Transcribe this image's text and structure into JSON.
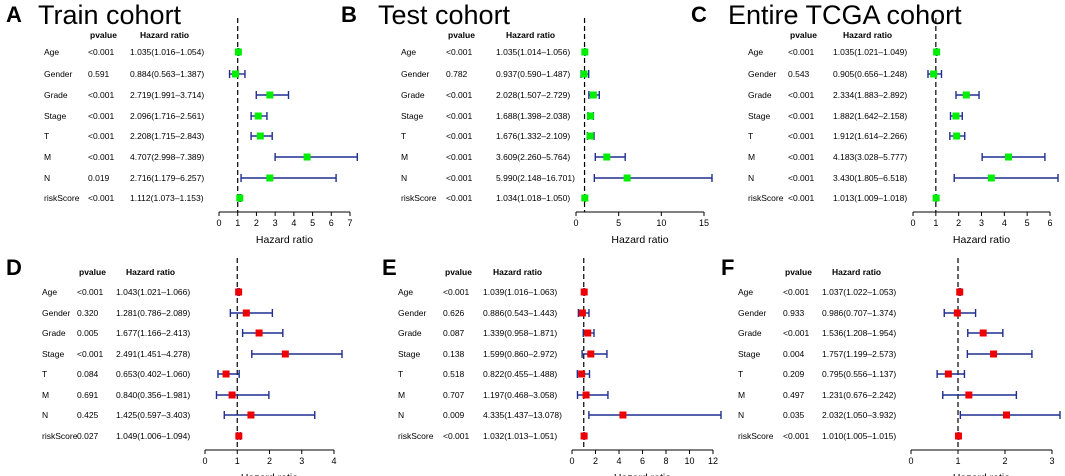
{
  "chart_data": [
    {
      "type": "forest",
      "panel": "A",
      "title": "Train cohort",
      "headers": {
        "pvalue": "pvalue",
        "hr": "Hazard ratio"
      },
      "xlabel": "Hazard ratio",
      "xlim": [
        0,
        7
      ],
      "xticks": [
        0,
        1,
        2,
        3,
        4,
        5,
        6,
        7
      ],
      "reference": 1,
      "marker_color": "#00ee00",
      "whisker_color": "#1f2f8f",
      "rows": [
        {
          "variable": "Age",
          "pvalue": "<0.001",
          "hr_text": "1.035(1.016–1.054)",
          "hr": 1.035,
          "lower": 1.016,
          "upper": 1.054
        },
        {
          "variable": "Gender",
          "pvalue": "0.591",
          "hr_text": "0.884(0.563–1.387)",
          "hr": 0.884,
          "lower": 0.563,
          "upper": 1.387
        },
        {
          "variable": "Grade",
          "pvalue": "<0.001",
          "hr_text": "2.719(1.991–3.714)",
          "hr": 2.719,
          "lower": 1.991,
          "upper": 3.714
        },
        {
          "variable": "Stage",
          "pvalue": "<0.001",
          "hr_text": "2.096(1.716–2.561)",
          "hr": 2.096,
          "lower": 1.716,
          "upper": 2.561
        },
        {
          "variable": "T",
          "pvalue": "<0.001",
          "hr_text": "2.208(1.715–2.843)",
          "hr": 2.208,
          "lower": 1.715,
          "upper": 2.843
        },
        {
          "variable": "M",
          "pvalue": "<0.001",
          "hr_text": "4.707(2.998–7.389)",
          "hr": 4.707,
          "lower": 2.998,
          "upper": 7.389
        },
        {
          "variable": "N",
          "pvalue": "0.019",
          "hr_text": "2.716(1.179–6.257)",
          "hr": 2.716,
          "lower": 1.179,
          "upper": 6.257
        },
        {
          "variable": "riskScore",
          "pvalue": "<0.001",
          "hr_text": "1.112(1.073–1.153)",
          "hr": 1.112,
          "lower": 1.073,
          "upper": 1.153
        }
      ]
    },
    {
      "type": "forest",
      "panel": "B",
      "title": "Test cohort",
      "headers": {
        "pvalue": "pvalue",
        "hr": "Hazard ratio"
      },
      "xlabel": "Hazard ratio",
      "xlim": [
        0,
        15
      ],
      "xticks": [
        0,
        5,
        10,
        15
      ],
      "reference": 1,
      "marker_color": "#00ee00",
      "whisker_color": "#1f2f8f",
      "rows": [
        {
          "variable": "Age",
          "pvalue": "<0.001",
          "hr_text": "1.035(1.014–1.056)",
          "hr": 1.035,
          "lower": 1.014,
          "upper": 1.056
        },
        {
          "variable": "Gender",
          "pvalue": "0.782",
          "hr_text": "0.937(0.590–1.487)",
          "hr": 0.937,
          "lower": 0.59,
          "upper": 1.487
        },
        {
          "variable": "Grade",
          "pvalue": "<0.001",
          "hr_text": "2.028(1.507–2.729)",
          "hr": 2.028,
          "lower": 1.507,
          "upper": 2.729
        },
        {
          "variable": "Stage",
          "pvalue": "<0.001",
          "hr_text": "1.688(1.398–2.038)",
          "hr": 1.688,
          "lower": 1.398,
          "upper": 2.038
        },
        {
          "variable": "T",
          "pvalue": "<0.001",
          "hr_text": "1.676(1.332–2.109)",
          "hr": 1.676,
          "lower": 1.332,
          "upper": 2.109
        },
        {
          "variable": "M",
          "pvalue": "<0.001",
          "hr_text": "3.609(2.260–5.764)",
          "hr": 3.609,
          "lower": 2.26,
          "upper": 5.764
        },
        {
          "variable": "N",
          "pvalue": "<0.001",
          "hr_text": "5.990(2.148–16.701)",
          "hr": 5.99,
          "lower": 2.148,
          "upper": 16.701
        },
        {
          "variable": "riskScore",
          "pvalue": "<0.001",
          "hr_text": "1.034(1.018–1.050)",
          "hr": 1.034,
          "lower": 1.018,
          "upper": 1.05
        }
      ]
    },
    {
      "type": "forest",
      "panel": "C",
      "title": "Entire TCGA cohort",
      "headers": {
        "pvalue": "pvalue",
        "hr": "Hazard ratio"
      },
      "xlabel": "Hazard ratio",
      "xlim": [
        0,
        6
      ],
      "xticks": [
        0,
        1,
        2,
        3,
        4,
        5,
        6
      ],
      "reference": 1,
      "marker_color": "#00ee00",
      "whisker_color": "#1f2f8f",
      "rows": [
        {
          "variable": "Age",
          "pvalue": "<0.001",
          "hr_text": "1.035(1.021–1.049)",
          "hr": 1.035,
          "lower": 1.021,
          "upper": 1.049
        },
        {
          "variable": "Gender",
          "pvalue": "0.543",
          "hr_text": "0.905(0.656–1.248)",
          "hr": 0.905,
          "lower": 0.656,
          "upper": 1.248
        },
        {
          "variable": "Grade",
          "pvalue": "<0.001",
          "hr_text": "2.334(1.883–2.892)",
          "hr": 2.334,
          "lower": 1.883,
          "upper": 2.892
        },
        {
          "variable": "Stage",
          "pvalue": "<0.001",
          "hr_text": "1.882(1.642–2.158)",
          "hr": 1.882,
          "lower": 1.642,
          "upper": 2.158
        },
        {
          "variable": "T",
          "pvalue": "<0.001",
          "hr_text": "1.912(1.614–2.266)",
          "hr": 1.912,
          "lower": 1.614,
          "upper": 2.266
        },
        {
          "variable": "M",
          "pvalue": "<0.001",
          "hr_text": "4.183(3.028–5.777)",
          "hr": 4.183,
          "lower": 3.028,
          "upper": 5.777
        },
        {
          "variable": "N",
          "pvalue": "<0.001",
          "hr_text": "3.430(1.805–6.518)",
          "hr": 3.43,
          "lower": 1.805,
          "upper": 6.518
        },
        {
          "variable": "riskScore",
          "pvalue": "<0.001",
          "hr_text": "1.013(1.009–1.018)",
          "hr": 1.013,
          "lower": 1.009,
          "upper": 1.018
        }
      ]
    },
    {
      "type": "forest",
      "panel": "D",
      "title": "",
      "headers": {
        "pvalue": "pvalue",
        "hr": "Hazard ratio"
      },
      "xlabel": "Hazard ratio",
      "xlim": [
        0,
        4
      ],
      "xticks": [
        0,
        1,
        2,
        3,
        4
      ],
      "reference": 1,
      "marker_color": "#ee0000",
      "whisker_color": "#1f2f8f",
      "rows": [
        {
          "variable": "Age",
          "pvalue": "<0.001",
          "hr_text": "1.043(1.021–1.066)",
          "hr": 1.043,
          "lower": 1.021,
          "upper": 1.066
        },
        {
          "variable": "Gender",
          "pvalue": "0.320",
          "hr_text": "1.281(0.786–2.089)",
          "hr": 1.281,
          "lower": 0.786,
          "upper": 2.089
        },
        {
          "variable": "Grade",
          "pvalue": "0.005",
          "hr_text": "1.677(1.166–2.413)",
          "hr": 1.677,
          "lower": 1.166,
          "upper": 2.413
        },
        {
          "variable": "Stage",
          "pvalue": "<0.001",
          "hr_text": "2.491(1.451–4.278)",
          "hr": 2.491,
          "lower": 1.451,
          "upper": 4.278
        },
        {
          "variable": "T",
          "pvalue": "0.084",
          "hr_text": "0.653(0.402–1.060)",
          "hr": 0.653,
          "lower": 0.402,
          "upper": 1.06
        },
        {
          "variable": "M",
          "pvalue": "0.691",
          "hr_text": "0.840(0.356–1.981)",
          "hr": 0.84,
          "lower": 0.356,
          "upper": 1.981
        },
        {
          "variable": "N",
          "pvalue": "0.425",
          "hr_text": "1.425(0.597–3.403)",
          "hr": 1.425,
          "lower": 0.597,
          "upper": 3.403
        },
        {
          "variable": "riskScore",
          "pvalue": "0.027",
          "hr_text": "1.049(1.006–1.094)",
          "hr": 1.049,
          "lower": 1.006,
          "upper": 1.094
        }
      ]
    },
    {
      "type": "forest",
      "panel": "E",
      "title": "",
      "headers": {
        "pvalue": "pvalue",
        "hr": "Hazard ratio"
      },
      "xlabel": "Hazard ratio",
      "xlim": [
        0,
        12
      ],
      "xticks": [
        0,
        2,
        4,
        6,
        8,
        10,
        12
      ],
      "reference": 1,
      "marker_color": "#ee0000",
      "whisker_color": "#1f2f8f",
      "rows": [
        {
          "variable": "Age",
          "pvalue": "<0.001",
          "hr_text": "1.039(1.016–1.063)",
          "hr": 1.039,
          "lower": 1.016,
          "upper": 1.063
        },
        {
          "variable": "Gender",
          "pvalue": "0.626",
          "hr_text": "0.886(0.543–1.443)",
          "hr": 0.886,
          "lower": 0.543,
          "upper": 1.443
        },
        {
          "variable": "Grade",
          "pvalue": "0.087",
          "hr_text": "1.339(0.958–1.871)",
          "hr": 1.339,
          "lower": 0.958,
          "upper": 1.871
        },
        {
          "variable": "Stage",
          "pvalue": "0.138",
          "hr_text": "1.599(0.860–2.972)",
          "hr": 1.599,
          "lower": 0.86,
          "upper": 2.972
        },
        {
          "variable": "T",
          "pvalue": "0.518",
          "hr_text": "0.822(0.455–1.488)",
          "hr": 0.822,
          "lower": 0.455,
          "upper": 1.488
        },
        {
          "variable": "M",
          "pvalue": "0.707",
          "hr_text": "1.197(0.468–3.058)",
          "hr": 1.197,
          "lower": 0.468,
          "upper": 3.058
        },
        {
          "variable": "N",
          "pvalue": "0.009",
          "hr_text": "4.335(1.437–13.078)",
          "hr": 4.335,
          "lower": 1.437,
          "upper": 13.078
        },
        {
          "variable": "riskScore",
          "pvalue": "<0.001",
          "hr_text": "1.032(1.013–1.051)",
          "hr": 1.032,
          "lower": 1.013,
          "upper": 1.051
        }
      ]
    },
    {
      "type": "forest",
      "panel": "F",
      "title": "",
      "headers": {
        "pvalue": "pvalue",
        "hr": "Hazard ratio"
      },
      "xlabel": "Hazard ratio",
      "xlim": [
        0,
        3
      ],
      "xticks": [
        0,
        1,
        2,
        3
      ],
      "reference": 1,
      "marker_color": "#ee0000",
      "whisker_color": "#1f2f8f",
      "rows": [
        {
          "variable": "Age",
          "pvalue": "<0.001",
          "hr_text": "1.037(1.022–1.053)",
          "hr": 1.037,
          "lower": 1.022,
          "upper": 1.053
        },
        {
          "variable": "Gender",
          "pvalue": "0.933",
          "hr_text": "0.986(0.707–1.374)",
          "hr": 0.986,
          "lower": 0.707,
          "upper": 1.374
        },
        {
          "variable": "Grade",
          "pvalue": "<0.001",
          "hr_text": "1.536(1.208–1.954)",
          "hr": 1.536,
          "lower": 1.208,
          "upper": 1.954
        },
        {
          "variable": "Stage",
          "pvalue": "0.004",
          "hr_text": "1.757(1.199–2.573)",
          "hr": 1.757,
          "lower": 1.199,
          "upper": 2.573
        },
        {
          "variable": "T",
          "pvalue": "0.209",
          "hr_text": "0.795(0.556–1.137)",
          "hr": 0.795,
          "lower": 0.556,
          "upper": 1.137
        },
        {
          "variable": "M",
          "pvalue": "0.497",
          "hr_text": "1.231(0.676–2.242)",
          "hr": 1.231,
          "lower": 0.676,
          "upper": 2.242
        },
        {
          "variable": "N",
          "pvalue": "0.035",
          "hr_text": "2.032(1.050–3.932)",
          "hr": 2.032,
          "lower": 1.05,
          "upper": 3.932
        },
        {
          "variable": "riskScore",
          "pvalue": "<0.001",
          "hr_text": "1.010(1.005–1.015)",
          "hr": 1.01,
          "lower": 1.005,
          "upper": 1.015
        }
      ]
    }
  ]
}
